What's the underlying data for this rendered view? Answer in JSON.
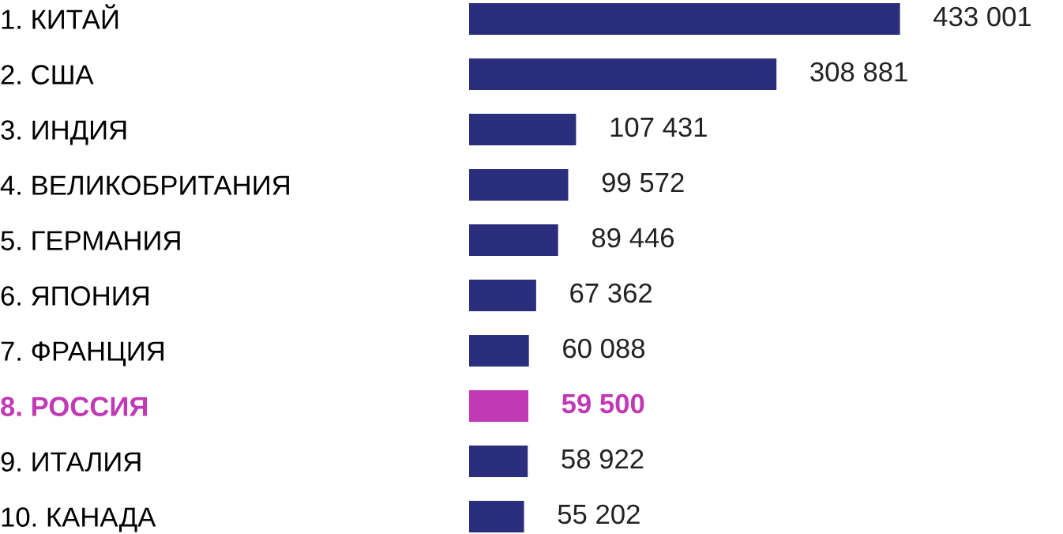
{
  "chart_data": {
    "type": "bar",
    "orientation": "horizontal",
    "categories": [
      "1. КИТАЙ",
      "2. США",
      "3. ИНДИЯ",
      "4. ВЕЛИКОБРИТАНИЯ",
      "5. ГЕРМАНИЯ",
      "6. ЯПОНИЯ",
      "7. ФРАНЦИЯ",
      "8. РОССИЯ",
      "9. ИТАЛИЯ",
      "10. КАНАДА"
    ],
    "values": [
      433001,
      308881,
      107431,
      99572,
      89446,
      67362,
      60088,
      59500,
      58922,
      55202
    ],
    "value_labels": [
      "433 001",
      "308 881",
      "107 431",
      "99 572",
      "89 446",
      "67 362",
      "60 088",
      "59 500",
      "58 922",
      "55 202"
    ],
    "colors": [
      "#2b2e7c",
      "#2b2e7c",
      "#2b2e7c",
      "#2b2e7c",
      "#2b2e7c",
      "#2b2e7c",
      "#2b2e7c",
      "#c03ab4",
      "#2b2e7c",
      "#2b2e7c"
    ],
    "grid": false,
    "legend": false
  }
}
